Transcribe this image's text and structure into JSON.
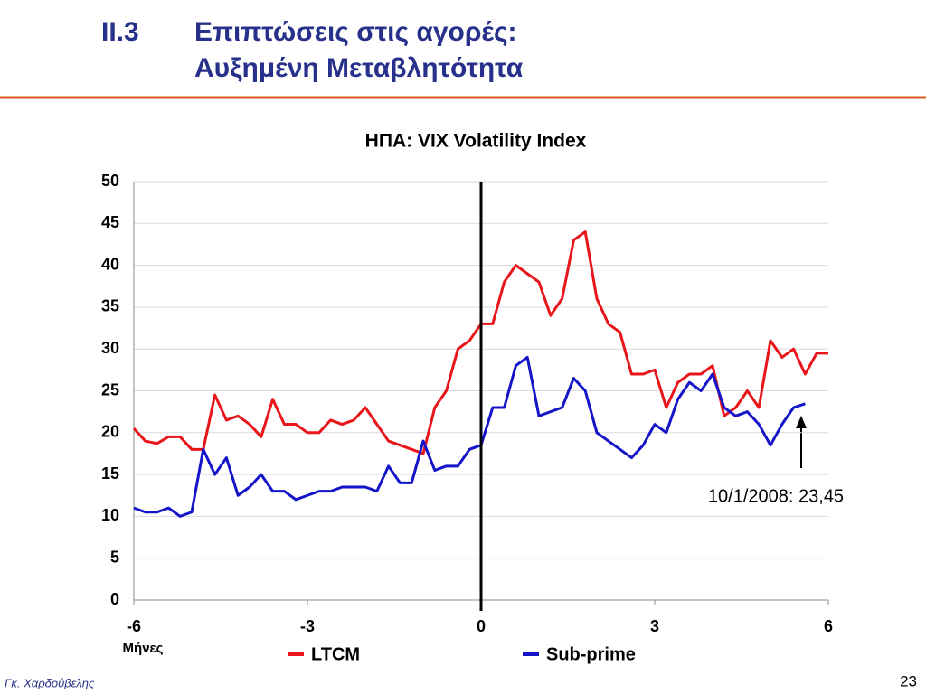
{
  "slide": {
    "section": "ΙΙ.3",
    "title_lines": [
      "Επιπτώσεις στις αγορές:",
      "Αυξημένη Μεταβλητότητα"
    ],
    "author": "Γκ. Χαρδούβελης",
    "page": "23"
  },
  "chart_data": {
    "type": "line",
    "title": "ΗΠΑ: VIX Volatility Index",
    "xlabel": "Μήνες",
    "x": [
      -6,
      -5.8,
      -5.6,
      -5.4,
      -5.2,
      -5,
      -4.8,
      -4.6,
      -4.4,
      -4.2,
      -4,
      -3.8,
      -3.6,
      -3.4,
      -3.2,
      -3,
      -2.8,
      -2.6,
      -2.4,
      -2.2,
      -2,
      -1.8,
      -1.6,
      -1.4,
      -1.2,
      -1,
      -0.8,
      -0.6,
      -0.4,
      -0.2,
      0,
      0.2,
      0.4,
      0.6,
      0.8,
      1,
      1.2,
      1.4,
      1.6,
      1.8,
      2,
      2.2,
      2.4,
      2.6,
      2.8,
      3,
      3.2,
      3.4,
      3.6,
      3.8,
      4,
      4.2,
      4.4,
      4.6,
      4.8,
      5,
      5.2,
      5.4,
      5.6,
      5.8,
      6
    ],
    "series": [
      {
        "name": "LTCM",
        "color": "#e8161b",
        "values": [
          20.5,
          19,
          18.7,
          19.5,
          19.5,
          18,
          18,
          24.5,
          21.5,
          22,
          21,
          19.5,
          24,
          21,
          21,
          20,
          20,
          21.5,
          21,
          21.5,
          23,
          21,
          19,
          18.5,
          18,
          17.5,
          23,
          25,
          30,
          31,
          33,
          33,
          38,
          40,
          39,
          38,
          34,
          36,
          43,
          44,
          36,
          33,
          32,
          27,
          27,
          27.5,
          23,
          26,
          27,
          27,
          28,
          22,
          23,
          25,
          23,
          31,
          29,
          30,
          27,
          29.5,
          29.5
        ]
      },
      {
        "name": "Sub-prime",
        "color": "#1414c8",
        "values": [
          11,
          10.5,
          10.5,
          11,
          10,
          10.5,
          18,
          15,
          17,
          12.5,
          13.5,
          15,
          13,
          13,
          12,
          12.5,
          13,
          13,
          13.5,
          13.5,
          13.5,
          13,
          16,
          14,
          14,
          19,
          15.5,
          16,
          16,
          18,
          18.5,
          23,
          23,
          28,
          29,
          22,
          22.5,
          23,
          26.5,
          25,
          20,
          19,
          18,
          17,
          18.5,
          21,
          20,
          24,
          26,
          25,
          27,
          23,
          22,
          22.5,
          21,
          18.5,
          21,
          23,
          23.45,
          null,
          null
        ]
      }
    ],
    "xlim": [
      -6,
      6
    ],
    "xticks": [
      -6,
      -3,
      0,
      3,
      6
    ],
    "ylim": [
      0,
      50
    ],
    "yticks": [
      0,
      5,
      10,
      15,
      20,
      25,
      30,
      35,
      40,
      45,
      50
    ],
    "grid": true,
    "vline": 0,
    "legend": "bottom",
    "annotations": [
      {
        "text": "10/1/2008: 23,45"
      }
    ]
  }
}
